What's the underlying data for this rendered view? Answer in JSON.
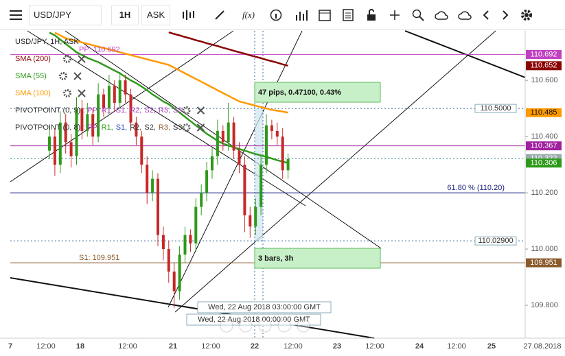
{
  "toolbar": {
    "symbol": "USD/JPY",
    "timeframe": "1H",
    "side": "ASK",
    "fx": "f(x)"
  },
  "chart_data": {
    "type": "candlestick",
    "title": "USD/JPY, 1H, ASK",
    "ylim": [
      109.683,
      110.776
    ],
    "yticks": [
      {
        "value": 109.8,
        "label": "109.800"
      },
      {
        "value": 110,
        "label": "110.000"
      },
      {
        "value": 110.2,
        "label": "110.200"
      },
      {
        "value": 110.4,
        "label": "110.400"
      },
      {
        "value": 110.6,
        "label": "110.600"
      }
    ],
    "x_labels": [
      "7",
      "12:00",
      "18",
      "12:00",
      "21",
      "12:00",
      "22",
      "12:00",
      "23",
      "12:00",
      "24",
      "12:00",
      "25",
      "27.08.2018"
    ],
    "up_color": "#2e9a1a",
    "down_color": "#c62828",
    "candles": {
      "open": [
        110.35,
        110.4,
        110.3,
        110.45,
        110.38,
        110.33,
        110.5,
        110.42,
        110.48,
        110.4,
        110.55,
        110.5,
        110.58,
        110.52,
        110.6,
        110.55,
        110.45,
        110.4,
        110.3,
        110.2,
        110.25,
        110.05,
        110.0,
        109.92,
        109.85,
        109.98,
        110.05,
        110.02,
        110.15,
        110.2,
        110.28,
        110.33,
        110.42,
        110.38,
        110.45,
        110.35,
        110.3,
        110.12,
        110.08,
        110.15,
        110.3,
        110.44,
        110.42,
        110.4,
        110.28
      ],
      "high": [
        110.44,
        110.43,
        110.49,
        110.48,
        110.41,
        110.54,
        110.53,
        110.52,
        110.5,
        110.59,
        110.57,
        110.62,
        110.6,
        110.63,
        110.62,
        110.57,
        110.47,
        110.42,
        110.33,
        110.28,
        110.27,
        110.08,
        110.03,
        109.95,
        110.01,
        110.08,
        110.07,
        110.18,
        110.23,
        110.31,
        110.36,
        110.46,
        110.44,
        110.52,
        110.47,
        110.38,
        110.33,
        110.15,
        110.18,
        110.33,
        110.48,
        110.46,
        110.45,
        110.43,
        110.34
      ],
      "low": [
        110.32,
        110.26,
        110.27,
        110.34,
        110.29,
        110.3,
        110.39,
        110.4,
        110.37,
        110.38,
        110.47,
        110.48,
        110.49,
        110.5,
        110.52,
        110.42,
        110.37,
        110.27,
        110.16,
        110.17,
        110.01,
        109.96,
        109.88,
        109.79,
        109.82,
        109.95,
        109.99,
        109.99,
        110.12,
        110.17,
        110.25,
        110.3,
        110.35,
        110.35,
        110.32,
        110.27,
        110.06,
        110.04,
        110.05,
        110.12,
        110.27,
        110.39,
        110.37,
        110.25,
        110.25
      ],
      "close": [
        110.4,
        110.3,
        110.45,
        110.38,
        110.33,
        110.5,
        110.42,
        110.48,
        110.4,
        110.55,
        110.5,
        110.58,
        110.52,
        110.6,
        110.55,
        110.45,
        110.4,
        110.3,
        110.2,
        110.25,
        110.05,
        110.0,
        109.92,
        109.85,
        109.98,
        110.05,
        110.02,
        110.15,
        110.2,
        110.28,
        110.33,
        110.42,
        110.38,
        110.45,
        110.35,
        110.3,
        110.12,
        110.08,
        110.15,
        110.3,
        110.44,
        110.42,
        110.4,
        110.28,
        110.32
      ]
    },
    "indicators": [
      {
        "name": "SMA (200)",
        "color": "#8b0000",
        "values": [
          null,
          null,
          null,
          null,
          null,
          null,
          null,
          null,
          null,
          null,
          null,
          null,
          null,
          null,
          null,
          null,
          null,
          null,
          null,
          null,
          null,
          null,
          110.771,
          110.765,
          110.76,
          110.754,
          110.749,
          110.743,
          110.738,
          110.732,
          110.727,
          110.722,
          110.716,
          110.711,
          110.705,
          110.7,
          110.695,
          110.689,
          110.684,
          110.679,
          110.673,
          110.668,
          110.663,
          110.657,
          110.652
        ]
      },
      {
        "name": "SMA (55)",
        "color": "#2e9a1a",
        "values": [
          110.77,
          110.76,
          110.745,
          110.73,
          110.715,
          110.7,
          110.69,
          110.68,
          110.672,
          110.665,
          110.655,
          110.645,
          110.635,
          110.625,
          110.612,
          110.6,
          110.59,
          110.578,
          110.565,
          110.55,
          110.538,
          110.525,
          110.515,
          110.5,
          110.485,
          110.47,
          110.455,
          110.44,
          110.425,
          110.41,
          110.398,
          110.385,
          110.375,
          110.368,
          110.362,
          110.356,
          110.35,
          110.344,
          110.338,
          110.333,
          110.328,
          110.322,
          110.316,
          110.311,
          110.306
        ]
      },
      {
        "name": "SMA (100)",
        "color": "#ff9900",
        "values": [
          null,
          110.77,
          110.76,
          110.75,
          110.745,
          110.74,
          110.735,
          110.73,
          110.725,
          110.72,
          110.715,
          110.71,
          110.705,
          110.7,
          110.695,
          110.69,
          110.685,
          110.68,
          110.675,
          110.67,
          110.665,
          110.66,
          110.655,
          110.645,
          110.635,
          110.625,
          110.615,
          110.605,
          110.595,
          110.585,
          110.575,
          110.565,
          110.555,
          110.545,
          110.535,
          110.525,
          110.52,
          110.515,
          110.51,
          110.505,
          110.5,
          110.495,
          110.492,
          110.489,
          110.485
        ]
      }
    ],
    "pivots": [
      {
        "name": "PIVOTPOINT (0, 9)",
        "items": [
          ": PP,",
          "R1,",
          "S1,",
          "R2,",
          "S2,",
          "R3,",
          "S3"
        ],
        "colors": [
          "#b040c0",
          "#b040c0",
          "#b040c0",
          "#b040c0",
          "#b040c0",
          "#b040c0",
          "#b040c0"
        ]
      },
      {
        "name": "PIVOTPOINT (0, 8)",
        "items": [
          ": PP,",
          "R1,",
          "S1,",
          "R2,",
          "S2,",
          "R3,",
          "S3"
        ],
        "colors": [
          "#b040c0",
          "#2e9a1a",
          "#3050c0",
          "#333333",
          "#333333",
          "#8b5a2b",
          "#222222"
        ]
      }
    ],
    "levels": [
      {
        "value": 110.692,
        "label": "PP: 110.692",
        "color": "#c040c0",
        "style": "solid",
        "tag": true
      },
      {
        "value": 110.367,
        "color": "#a020a0",
        "style": "solid",
        "tag": true
      },
      {
        "value": 110.322,
        "color": "#2a8a8a",
        "style": "dotted",
        "tag": true
      },
      {
        "value": 110.2,
        "label": "61.80 % (110.20)",
        "color": "#1a237e",
        "style": "solid",
        "tag": false
      },
      {
        "value": 109.951,
        "label": "S1: 109.951",
        "color": "#8b5a2b",
        "style": "solid",
        "tag": true
      },
      {
        "value": 110.5,
        "box_label": "110.5000",
        "color": "#3a6fa0",
        "style": "dotted",
        "tag": false
      },
      {
        "value": 110.029,
        "box_label": "110.02900",
        "color": "#3a6fa0",
        "style": "dotted",
        "tag": false
      }
    ],
    "measure": {
      "pips": "47 pips, 0.47100, 0.43%",
      "bars": "3 bars, 3h"
    },
    "crosshair_times": [
      "Wed, 22 Aug 2018 03:00:00 GMT",
      "Wed, 22 Aug 2018 00:00:00 GMT"
    ]
  }
}
